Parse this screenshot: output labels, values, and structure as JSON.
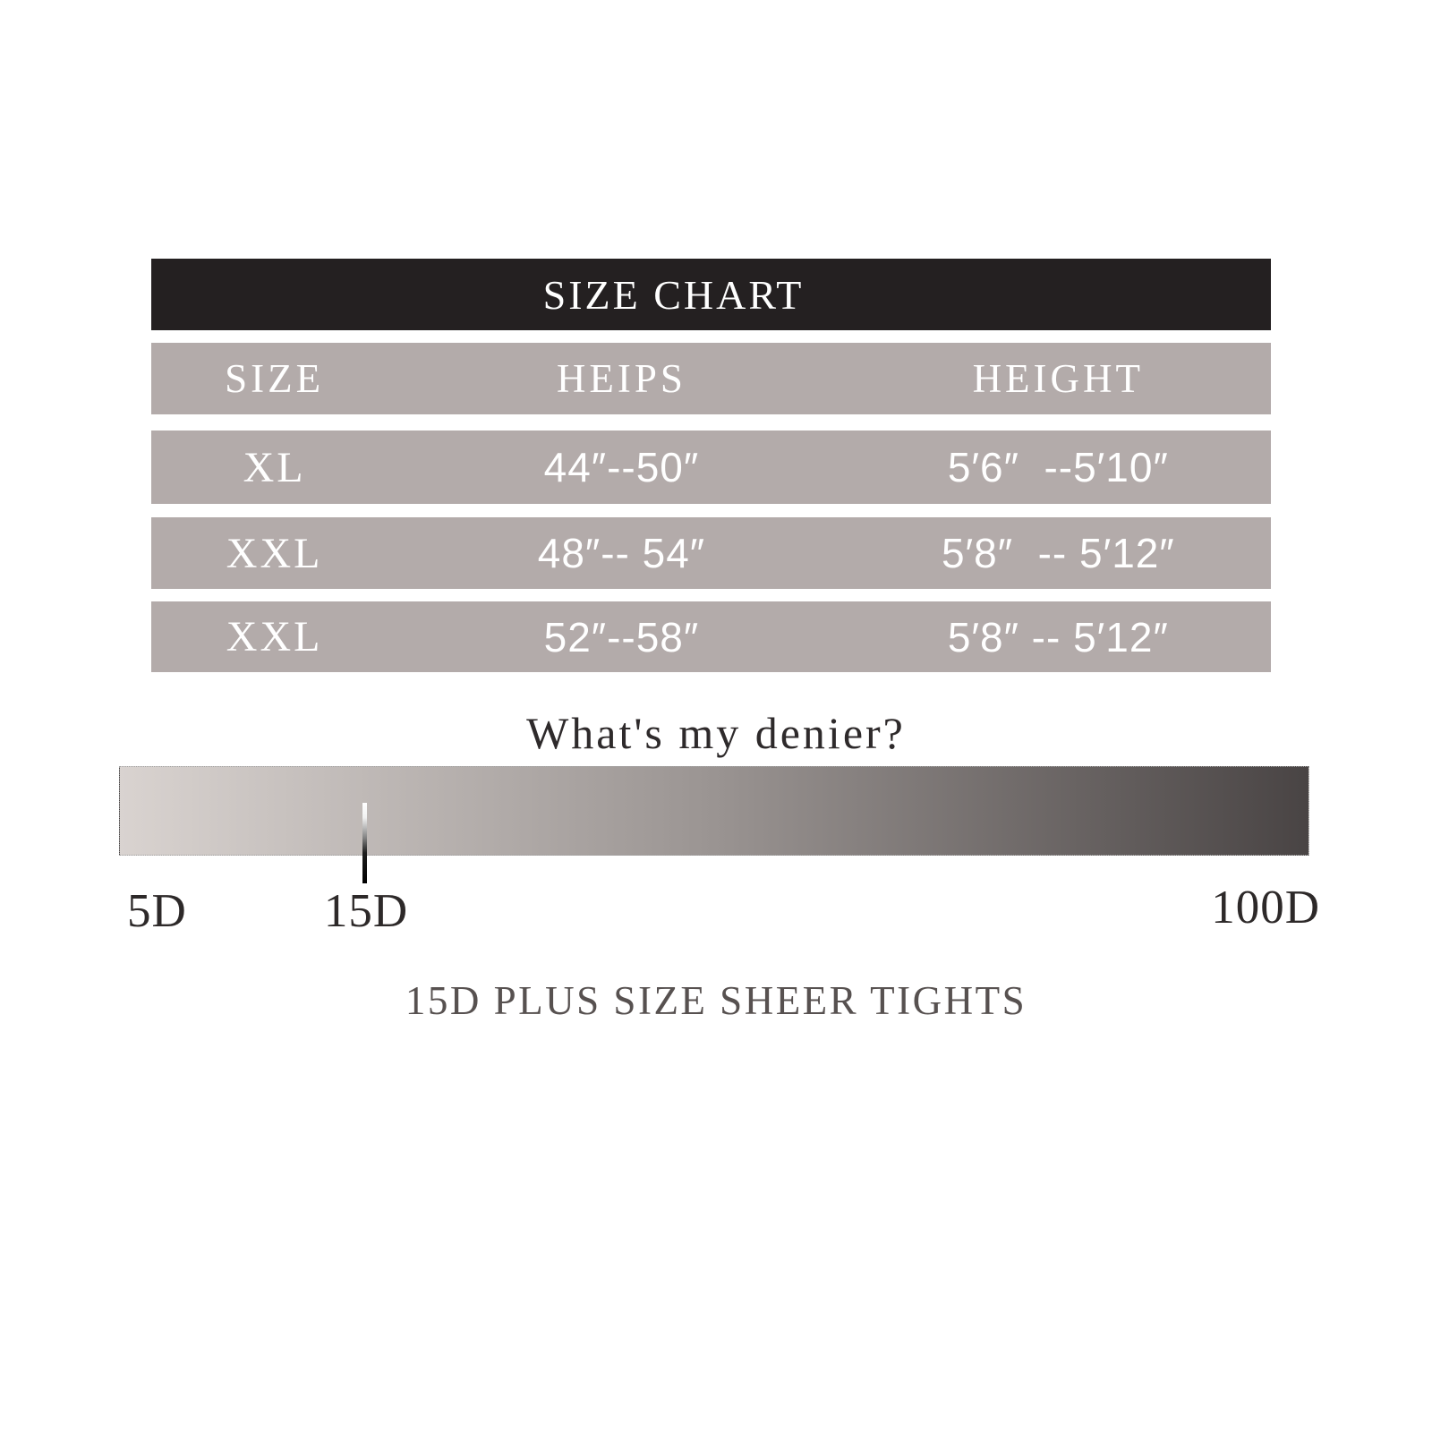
{
  "title": "SIZE CHART",
  "table": {
    "headers": {
      "size": "SIZE",
      "hips": "HEIPS",
      "height": "HEIGHT"
    },
    "rows": [
      {
        "size": "XL",
        "hips": "44″--50″",
        "height": "5′6″  --5′10″"
      },
      {
        "size": "XXL",
        "hips": "48″-- 54″",
        "height": "5′8″  -- 5′12″"
      },
      {
        "size": "XXL",
        "hips": "52″--58″",
        "height": "5′8″ -- 5′12″"
      }
    ]
  },
  "denier": {
    "question": "What's my denier?",
    "scale_min_label": "5D",
    "marker_label": "15D",
    "scale_max_label": "100D",
    "gradient_start_color": "#d9d3d0",
    "gradient_end_color": "#494444"
  },
  "caption": "15D PLUS SIZE SHEER TIGHTS",
  "colors": {
    "header_bar": "#242021",
    "row_background": "#b3abaa",
    "row_text": "#ffffff",
    "body_text": "#2e2a2b",
    "caption_text": "#575150"
  },
  "chart_data": [
    {
      "type": "table",
      "title": "SIZE CHART",
      "columns": [
        "SIZE",
        "HEIPS",
        "HEIGHT"
      ],
      "rows": [
        [
          "XL",
          "44″--50″",
          "5′6″ --5′10″"
        ],
        [
          "XXL",
          "48″-- 54″",
          "5′8″ -- 5′12″"
        ],
        [
          "XXL",
          "52″--58″",
          "5′8″ -- 5′12″"
        ]
      ]
    },
    {
      "type": "scale",
      "title": "What's my denier?",
      "ticks": [
        "5D",
        "15D",
        "100D"
      ],
      "range": [
        5,
        100
      ],
      "marker_value": 15,
      "marker_label": "15D",
      "gradient": [
        "#d9d3d0",
        "#494444"
      ],
      "caption": "15D PLUS SIZE SHEER TIGHTS",
      "legend_position": "below"
    }
  ]
}
